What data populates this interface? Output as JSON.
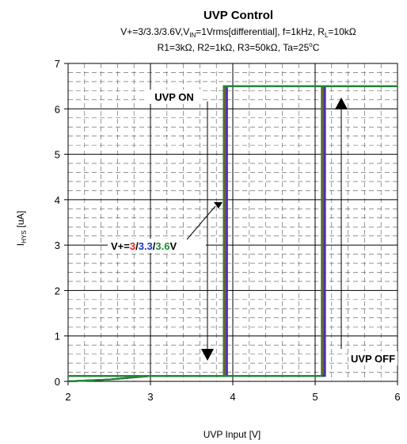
{
  "chart_data": {
    "type": "line",
    "title": "UVP Control",
    "subtitle": {
      "line1": {
        "p1": "V+=3/3.3/3.6V,V",
        "sub1": "IN",
        "p2": "=1Vrms[differential], f=1kHz, R",
        "sub2": "L",
        "p3": "=10kΩ"
      },
      "line2": {
        "p1": "R1=3kΩ, R2=1kΩ, R3=50kΩ, Ta=25",
        "sup": "o",
        "p2": "C"
      }
    },
    "xlabel": "UVP Input [V]",
    "ylabel": {
      "main": "I",
      "sub": "HYS",
      "rest": " [uA]"
    },
    "xlim": [
      2,
      6
    ],
    "ylim": [
      0,
      7
    ],
    "x_ticks": [
      "2",
      "3",
      "4",
      "5",
      "6"
    ],
    "y_ticks": [
      "0",
      "1",
      "2",
      "3",
      "4",
      "5",
      "6",
      "7"
    ],
    "grid": true,
    "series": [
      {
        "color": "#d4272e",
        "x": [
          2.0,
          2.5,
          3.0,
          3.91,
          3.91,
          6.0
        ],
        "y": [
          0.0,
          0.04,
          0.12,
          0.12,
          6.5,
          6.5
        ],
        "x_return": [
          6.0,
          5.1,
          5.1,
          2.0
        ],
        "y_return": [
          6.5,
          6.5,
          0.12,
          0.12
        ]
      },
      {
        "color": "#2233cc",
        "x": [
          2.0,
          2.5,
          3.0,
          3.93,
          3.93,
          6.0
        ],
        "y": [
          0.0,
          0.04,
          0.12,
          0.12,
          6.5,
          6.5
        ],
        "x_return": [
          6.0,
          5.12,
          5.12,
          2.0
        ],
        "y_return": [
          6.5,
          6.5,
          0.12,
          0.12
        ]
      },
      {
        "color": "#1e8a2e",
        "x": [
          2.0,
          2.5,
          3.0,
          3.89,
          3.89,
          6.0
        ],
        "y": [
          0.0,
          0.04,
          0.12,
          0.12,
          6.5,
          6.5
        ],
        "x_return": [
          6.0,
          5.08,
          5.08,
          2.0
        ],
        "y_return": [
          6.5,
          6.5,
          0.12,
          0.12
        ]
      }
    ],
    "annotations": {
      "uvp_on": "UVP ON",
      "uvp_off": "UVP OFF",
      "vplus": {
        "prefix": "V+=",
        "v1": "3",
        "v1_color": "#ee1c24",
        "sep1": "/",
        "v2": "3.3",
        "v2_color": "#1a35c8",
        "sep2": "/",
        "v3": "3.6",
        "v3_color": "#1e8a2e",
        "suffix": "V"
      }
    }
  }
}
